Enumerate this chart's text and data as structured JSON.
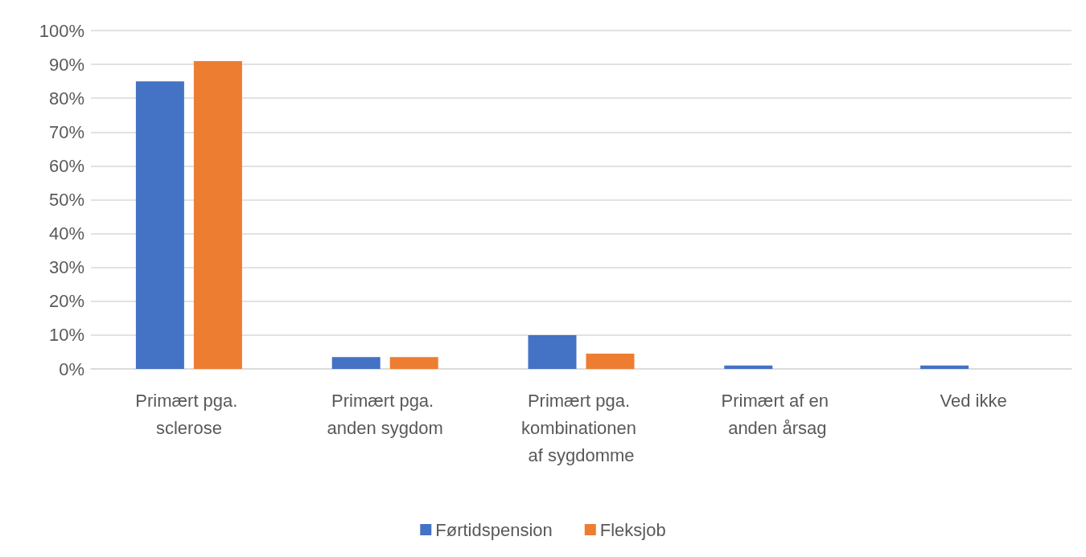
{
  "chart_data": {
    "type": "bar",
    "categories": [
      "Primært pga. sclerose",
      "Primært pga. anden sygdom",
      "Primært pga. kombinationen af sygdomme",
      "Primært af en anden årsag",
      "Ved ikke"
    ],
    "series": [
      {
        "name": "Førtidspension",
        "color": "#4472c4",
        "values": [
          85,
          3.5,
          10,
          1,
          1
        ]
      },
      {
        "name": "Fleksjob",
        "color": "#ed7d31",
        "values": [
          91,
          3.5,
          4.5,
          0,
          0
        ]
      }
    ],
    "ylim": [
      0,
      100
    ],
    "yticks": [
      {
        "value": 0,
        "label": "0%"
      },
      {
        "value": 10,
        "label": "10%"
      },
      {
        "value": 20,
        "label": "20%"
      },
      {
        "value": 30,
        "label": "30%"
      },
      {
        "value": 40,
        "label": "40%"
      },
      {
        "value": 50,
        "label": "50%"
      },
      {
        "value": 60,
        "label": "60%"
      },
      {
        "value": 70,
        "label": "70%"
      },
      {
        "value": 80,
        "label": "80%"
      },
      {
        "value": 90,
        "label": "90%"
      },
      {
        "value": 100,
        "label": "100%"
      }
    ],
    "grid": "y",
    "legend": "bottom"
  }
}
